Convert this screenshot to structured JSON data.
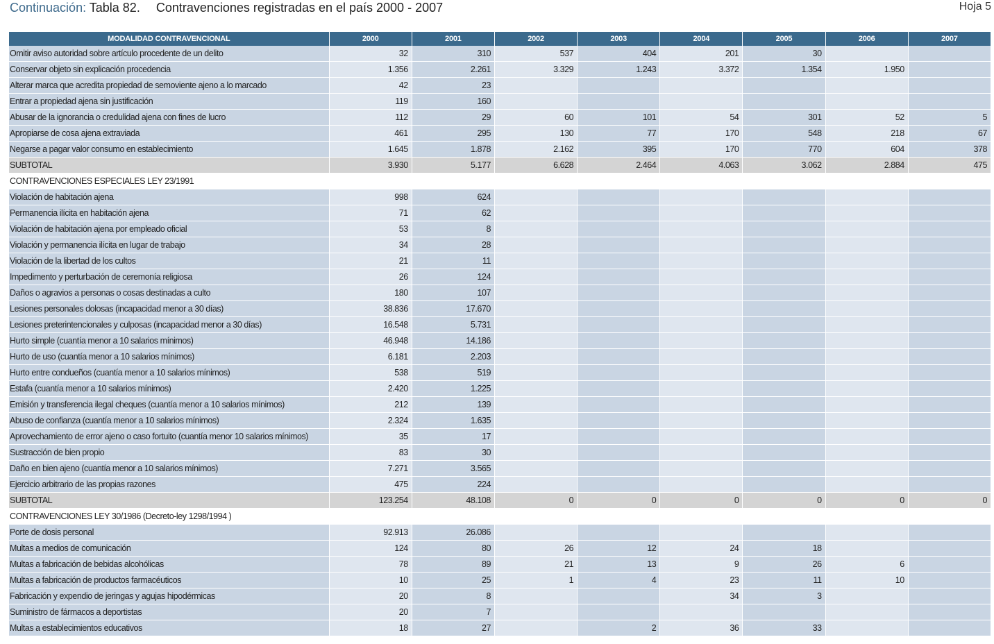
{
  "header": {
    "prefix": "Continuación:",
    "table_number": "Tabla 82.",
    "title": "Contravenciones registradas en el país 2000 - 2007",
    "sheet": "Hoja 5"
  },
  "table": {
    "columns": [
      "MODALIDAD CONTRAVENCIONAL",
      "2000",
      "2001",
      "2002",
      "2003",
      "2004",
      "2005",
      "2006",
      "2007"
    ],
    "rows": [
      {
        "type": "data",
        "label": "Omitir aviso autoridad sobre artículo procedente de un delito",
        "values": [
          "32",
          "310",
          "537",
          "404",
          "201",
          "30",
          "",
          ""
        ]
      },
      {
        "type": "data",
        "label": "Conservar objeto sin explicación procedencia",
        "values": [
          "1.356",
          "2.261",
          "3.329",
          "1.243",
          "3.372",
          "1.354",
          "1.950",
          ""
        ]
      },
      {
        "type": "data",
        "label": "Alterar marca que acredita propiedad de semoviente ajeno a lo marcado",
        "values": [
          "42",
          "23",
          "",
          "",
          "",
          "",
          "",
          ""
        ]
      },
      {
        "type": "data",
        "label": "Entrar a propiedad ajena sin justificación",
        "values": [
          "119",
          "160",
          "",
          "",
          "",
          "",
          "",
          ""
        ]
      },
      {
        "type": "data",
        "label": "Abusar de la ignorancia o credulidad ajena con fines de lucro",
        "values": [
          "112",
          "29",
          "60",
          "101",
          "54",
          "301",
          "52",
          "5"
        ]
      },
      {
        "type": "data",
        "label": "Apropiarse de cosa ajena extraviada",
        "values": [
          "461",
          "295",
          "130",
          "77",
          "170",
          "548",
          "218",
          "67"
        ]
      },
      {
        "type": "data",
        "label": "Negarse a pagar valor consumo en establecimiento",
        "values": [
          "1.645",
          "1.878",
          "2.162",
          "395",
          "170",
          "770",
          "604",
          "378"
        ]
      },
      {
        "type": "subtotal",
        "label": "SUBTOTAL",
        "values": [
          "3.930",
          "5.177",
          "6.628",
          "2.464",
          "4.063",
          "3.062",
          "2.884",
          "475"
        ]
      },
      {
        "type": "section",
        "label": "CONTRAVENCIONES ESPECIALES LEY 23/1991"
      },
      {
        "type": "data",
        "label": "Violación de habitación ajena",
        "values": [
          "998",
          "624",
          "",
          "",
          "",
          "",
          "",
          ""
        ]
      },
      {
        "type": "data",
        "label": "Permanencia ilícita en habitación ajena",
        "values": [
          "71",
          "62",
          "",
          "",
          "",
          "",
          "",
          ""
        ]
      },
      {
        "type": "data",
        "label": "Violación de habitación ajena por empleado oficial",
        "values": [
          "53",
          "8",
          "",
          "",
          "",
          "",
          "",
          ""
        ]
      },
      {
        "type": "data",
        "label": "Violación y permanencia ilícita en lugar de trabajo",
        "values": [
          "34",
          "28",
          "",
          "",
          "",
          "",
          "",
          ""
        ]
      },
      {
        "type": "data",
        "label": "Violación de la libertad de los cultos",
        "values": [
          "21",
          "11",
          "",
          "",
          "",
          "",
          "",
          ""
        ]
      },
      {
        "type": "data",
        "label": "Impedimento y perturbación de ceremonía religiosa",
        "values": [
          "26",
          "124",
          "",
          "",
          "",
          "",
          "",
          ""
        ]
      },
      {
        "type": "data",
        "label": "Daños o agravios a personas o cosas destinadas a culto",
        "values": [
          "180",
          "107",
          "",
          "",
          "",
          "",
          "",
          ""
        ]
      },
      {
        "type": "data",
        "label": "Lesiones personales dolosas (incapacidad menor a 30 días)",
        "values": [
          "38.836",
          "17.670",
          "",
          "",
          "",
          "",
          "",
          ""
        ]
      },
      {
        "type": "data",
        "label": "Lesiones preterintencionales y culposas (incapacidad menor a 30 días)",
        "values": [
          "16.548",
          "5.731",
          "",
          "",
          "",
          "",
          "",
          ""
        ]
      },
      {
        "type": "data",
        "label": "Hurto simple (cuantía menor a 10 salarios mínimos)",
        "values": [
          "46.948",
          "14.186",
          "",
          "",
          "",
          "",
          "",
          ""
        ]
      },
      {
        "type": "data",
        "label": "Hurto de uso (cuantía menor a 10 salarios mínimos)",
        "values": [
          "6.181",
          "2.203",
          "",
          "",
          "",
          "",
          "",
          ""
        ]
      },
      {
        "type": "data",
        "label": "Hurto entre condueños (cuantía menor a 10 salarios mínimos)",
        "values": [
          "538",
          "519",
          "",
          "",
          "",
          "",
          "",
          ""
        ]
      },
      {
        "type": "data",
        "label": "Estafa (cuantía menor a 10 salarios mínimos)",
        "values": [
          "2.420",
          "1.225",
          "",
          "",
          "",
          "",
          "",
          ""
        ]
      },
      {
        "type": "data",
        "label": "Emisión y transferencia ilegal cheques (cuantía menor a 10 salarios mínimos)",
        "values": [
          "212",
          "139",
          "",
          "",
          "",
          "",
          "",
          ""
        ]
      },
      {
        "type": "data",
        "label": "Abuso de confianza (cuantía menor a 10 salarios mínimos)",
        "values": [
          "2.324",
          "1.635",
          "",
          "",
          "",
          "",
          "",
          ""
        ]
      },
      {
        "type": "data",
        "label": "Aprovechamiento de error ajeno o caso fortuito (cuantía menor 10 salarios mínimos)",
        "values": [
          "35",
          "17",
          "",
          "",
          "",
          "",
          "",
          ""
        ]
      },
      {
        "type": "data",
        "label": "Sustracción de bien propio",
        "values": [
          "83",
          "30",
          "",
          "",
          "",
          "",
          "",
          ""
        ]
      },
      {
        "type": "data",
        "label": "Daño en bien ajeno (cuantía menor a 10 salarios mínimos)",
        "values": [
          "7.271",
          "3.565",
          "",
          "",
          "",
          "",
          "",
          ""
        ]
      },
      {
        "type": "data",
        "label": "Ejercicio arbitrario de las propias razones",
        "values": [
          "475",
          "224",
          "",
          "",
          "",
          "",
          "",
          ""
        ]
      },
      {
        "type": "subtotal",
        "label": "SUBTOTAL",
        "values": [
          "123.254",
          "48.108",
          "0",
          "0",
          "0",
          "0",
          "0",
          "0"
        ]
      },
      {
        "type": "section",
        "label": "CONTRAVENCIONES LEY 30/1986 (Decreto-ley 1298/1994 )"
      },
      {
        "type": "data",
        "label": "Porte de dosis personal",
        "values": [
          "92.913",
          "26.086",
          "",
          "",
          "",
          "",
          "",
          ""
        ]
      },
      {
        "type": "data",
        "label": "Multas a medios de comunicación",
        "values": [
          "124",
          "80",
          "26",
          "12",
          "24",
          "18",
          "",
          ""
        ]
      },
      {
        "type": "data",
        "label": "Multas a fabricación de bebidas alcohólicas",
        "values": [
          "78",
          "89",
          "21",
          "13",
          "9",
          "26",
          "6",
          ""
        ]
      },
      {
        "type": "data",
        "label": "Multas a fabricación de productos farmacéuticos",
        "values": [
          "10",
          "25",
          "1",
          "4",
          "23",
          "11",
          "10",
          ""
        ]
      },
      {
        "type": "data",
        "label": "Fabricación y expendio de jeringas y agujas hipodérmicas",
        "values": [
          "20",
          "8",
          "",
          "",
          "34",
          "3",
          "",
          ""
        ]
      },
      {
        "type": "data",
        "label": "Suministro de fármacos a deportistas",
        "values": [
          "20",
          "7",
          "",
          "",
          "",
          "",
          "",
          ""
        ]
      },
      {
        "type": "data",
        "label": "Multas a establecimientos educativos",
        "values": [
          "18",
          "27",
          "",
          "2",
          "36",
          "33",
          "",
          ""
        ]
      }
    ]
  }
}
